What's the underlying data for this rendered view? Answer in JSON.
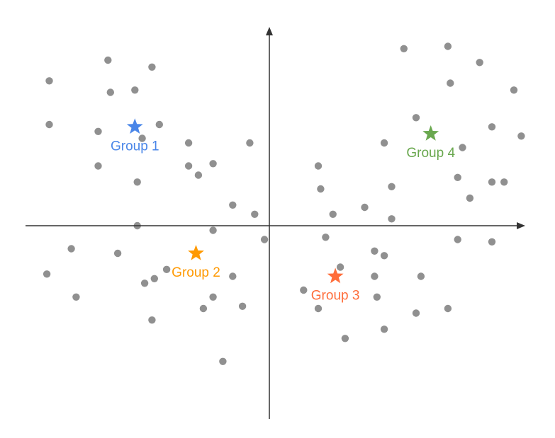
{
  "chart_data": {
    "type": "scatter",
    "xlim": [
      -10,
      10
    ],
    "ylim": [
      -10,
      10
    ],
    "grid": false,
    "title": "",
    "xlabel": "",
    "ylabel": "",
    "points": [
      {
        "x": -9.0,
        "y": 6.3
      },
      {
        "x": -6.6,
        "y": 7.2
      },
      {
        "x": -4.8,
        "y": 6.9
      },
      {
        "x": -6.5,
        "y": 5.8
      },
      {
        "x": -5.5,
        "y": 5.9
      },
      {
        "x": -9.0,
        "y": 4.4
      },
      {
        "x": -7.0,
        "y": 4.1
      },
      {
        "x": -5.2,
        "y": 3.8
      },
      {
        "x": -4.5,
        "y": 4.4
      },
      {
        "x": -3.3,
        "y": 3.6
      },
      {
        "x": -0.8,
        "y": 3.6
      },
      {
        "x": -7.0,
        "y": 2.6
      },
      {
        "x": -3.3,
        "y": 2.6
      },
      {
        "x": -2.3,
        "y": 2.7
      },
      {
        "x": -2.9,
        "y": 2.2
      },
      {
        "x": -5.4,
        "y": 1.9
      },
      {
        "x": -1.5,
        "y": 0.9
      },
      {
        "x": -0.6,
        "y": 0.5
      },
      {
        "x": -5.4,
        "y": 0.0
      },
      {
        "x": -2.3,
        "y": -0.2
      },
      {
        "x": -0.2,
        "y": -0.6
      },
      {
        "x": -8.1,
        "y": -1.0
      },
      {
        "x": -6.2,
        "y": -1.2
      },
      {
        "x": -9.1,
        "y": -2.1
      },
      {
        "x": -4.2,
        "y": -1.9
      },
      {
        "x": -4.7,
        "y": -2.3
      },
      {
        "x": -5.1,
        "y": -2.5
      },
      {
        "x": -1.5,
        "y": -2.2
      },
      {
        "x": -7.9,
        "y": -3.1
      },
      {
        "x": -2.3,
        "y": -3.1
      },
      {
        "x": -2.7,
        "y": -3.6
      },
      {
        "x": -1.1,
        "y": -3.5
      },
      {
        "x": -4.8,
        "y": -4.1
      },
      {
        "x": -1.9,
        "y": -5.9
      },
      {
        "x": 8.6,
        "y": 7.1
      },
      {
        "x": 5.5,
        "y": 7.7
      },
      {
        "x": 7.3,
        "y": 7.8
      },
      {
        "x": 7.4,
        "y": 6.2
      },
      {
        "x": 10.0,
        "y": 5.9
      },
      {
        "x": 6.0,
        "y": 4.7
      },
      {
        "x": 9.1,
        "y": 4.3
      },
      {
        "x": 4.7,
        "y": 3.6
      },
      {
        "x": 10.3,
        "y": 3.9
      },
      {
        "x": 7.9,
        "y": 3.4
      },
      {
        "x": 2.0,
        "y": 2.6
      },
      {
        "x": 7.7,
        "y": 2.1
      },
      {
        "x": 9.1,
        "y": 1.9
      },
      {
        "x": 9.6,
        "y": 1.9
      },
      {
        "x": 5.0,
        "y": 1.7
      },
      {
        "x": 2.1,
        "y": 1.6
      },
      {
        "x": 8.2,
        "y": 1.2
      },
      {
        "x": 3.9,
        "y": 0.8
      },
      {
        "x": 2.6,
        "y": 0.5
      },
      {
        "x": 5.0,
        "y": 0.3
      },
      {
        "x": 2.3,
        "y": -0.5
      },
      {
        "x": 7.7,
        "y": -0.6
      },
      {
        "x": 9.1,
        "y": -0.7
      },
      {
        "x": 4.3,
        "y": -1.1
      },
      {
        "x": 4.7,
        "y": -1.3
      },
      {
        "x": 2.9,
        "y": -1.8
      },
      {
        "x": 4.3,
        "y": -2.2
      },
      {
        "x": 6.2,
        "y": -2.2
      },
      {
        "x": 1.4,
        "y": -2.8
      },
      {
        "x": 4.4,
        "y": -3.1
      },
      {
        "x": 2.0,
        "y": -3.6
      },
      {
        "x": 6.0,
        "y": -3.8
      },
      {
        "x": 7.3,
        "y": -3.6
      },
      {
        "x": 4.7,
        "y": -4.5
      },
      {
        "x": 3.1,
        "y": -4.9
      }
    ],
    "annotations": [
      {
        "label": "Group 1",
        "x": -5.5,
        "y": 4.3,
        "color": "#4a86e8",
        "marker": "star"
      },
      {
        "label": "Group 2",
        "x": -3.0,
        "y": -1.2,
        "color": "#ff9900",
        "marker": "star"
      },
      {
        "label": "Group 3",
        "x": 2.7,
        "y": -2.2,
        "color": "#ff6d3a",
        "marker": "star"
      },
      {
        "label": "Group 4",
        "x": 6.6,
        "y": 4.0,
        "color": "#6aa84f",
        "marker": "star"
      }
    ],
    "point_color": "#909090",
    "axis_color": "#333333"
  }
}
